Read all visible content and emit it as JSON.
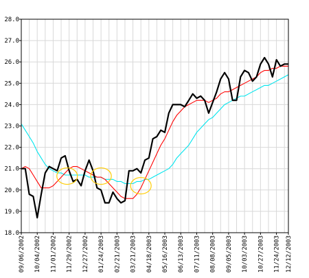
{
  "chart_data": {
    "type": "line",
    "title": "",
    "xlabel": "",
    "ylabel": "",
    "ylim": [
      18.0,
      28.0
    ],
    "grid": true,
    "legend": "none",
    "y_ticks": [
      "18.0",
      "19.0",
      "20.0",
      "21.0",
      "22.0",
      "23.0",
      "24.0",
      "25.0",
      "26.0",
      "27.0",
      "28.0"
    ],
    "x_tick_labels": [
      "09/06/2002",
      "10/04/2002",
      "11/01/2002",
      "11/29/2002",
      "12/27/2002",
      "01/24/2003",
      "02/21/2003",
      "03/21/2003",
      "04/18/2003",
      "05/16/2003",
      "06/13/2003",
      "07/11/2003",
      "08/08/2003",
      "09/05/2003",
      "10/03/2003",
      "10/27/2003",
      "11/24/2003",
      "12/12/2003"
    ],
    "x_tick_positions": [
      0,
      4,
      8,
      12,
      16,
      20,
      24,
      28,
      32,
      36,
      40,
      44,
      48,
      52,
      56,
      60,
      64,
      67
    ],
    "x_range": [
      0,
      67
    ],
    "series": [
      {
        "color": "#000000",
        "width": 2.2,
        "values": [
          21.0,
          21.0,
          19.8,
          19.7,
          18.7,
          19.8,
          20.8,
          21.1,
          21.0,
          20.9,
          21.5,
          21.6,
          20.9,
          20.4,
          20.5,
          20.2,
          20.9,
          21.4,
          20.9,
          20.1,
          20.0,
          19.4,
          19.4,
          19.9,
          19.6,
          19.4,
          19.5,
          20.9,
          20.9,
          21.0,
          20.8,
          21.4,
          21.5,
          22.4,
          22.5,
          22.8,
          22.7,
          23.6,
          24.0,
          24.0,
          24.0,
          23.9,
          24.2,
          24.5,
          24.3,
          24.4,
          24.2,
          23.6,
          24.1,
          24.6,
          25.2,
          25.5,
          25.2,
          24.2,
          24.2,
          25.3,
          25.6,
          25.5,
          25.1,
          25.3,
          25.9,
          26.2,
          25.9,
          25.3,
          26.1,
          25.8,
          25.9,
          25.9
        ]
      },
      {
        "color": "#ff0000",
        "width": 1.1,
        "values": [
          21.0,
          21.1,
          21.0,
          20.7,
          20.4,
          20.1,
          20.1,
          20.1,
          20.2,
          20.4,
          20.6,
          20.8,
          21.0,
          21.1,
          21.1,
          21.0,
          20.9,
          20.8,
          20.7,
          20.6,
          20.6,
          20.5,
          20.3,
          20.1,
          19.9,
          19.7,
          19.6,
          19.6,
          19.6,
          19.8,
          20.1,
          20.5,
          20.9,
          21.3,
          21.7,
          22.1,
          22.4,
          22.8,
          23.2,
          23.5,
          23.7,
          23.9,
          24.0,
          24.1,
          24.2,
          24.2,
          24.2,
          24.1,
          24.2,
          24.3,
          24.5,
          24.6,
          24.6,
          24.7,
          24.8,
          24.9,
          25.0,
          25.1,
          25.2,
          25.3,
          25.5,
          25.6,
          25.6,
          25.7,
          25.7,
          25.8,
          25.8,
          25.8
        ]
      },
      {
        "color": "#00e5ee",
        "width": 1.1,
        "values": [
          23.1,
          22.8,
          22.5,
          22.2,
          21.8,
          21.5,
          21.2,
          21.0,
          20.9,
          20.8,
          20.8,
          20.7,
          20.7,
          20.7,
          20.7,
          20.7,
          20.7,
          20.6,
          20.6,
          20.6,
          20.6,
          20.5,
          20.5,
          20.5,
          20.4,
          20.4,
          20.3,
          20.3,
          20.3,
          20.4,
          20.4,
          20.5,
          20.5,
          20.6,
          20.7,
          20.8,
          20.9,
          21.0,
          21.2,
          21.5,
          21.7,
          21.9,
          22.1,
          22.4,
          22.7,
          22.9,
          23.1,
          23.3,
          23.4,
          23.6,
          23.8,
          24.0,
          24.1,
          24.2,
          24.3,
          24.4,
          24.4,
          24.5,
          24.6,
          24.7,
          24.8,
          24.9,
          24.9,
          25.0,
          25.1,
          25.2,
          25.3,
          25.4
        ]
      }
    ],
    "highlight_circles": [
      {
        "x": 11.5,
        "y": 20.65,
        "color": "#ffcc00"
      },
      {
        "x": 20.0,
        "y": 20.65,
        "color": "#ffcc00"
      },
      {
        "x": 30.0,
        "y": 20.2,
        "color": "#ffcc00"
      }
    ]
  }
}
